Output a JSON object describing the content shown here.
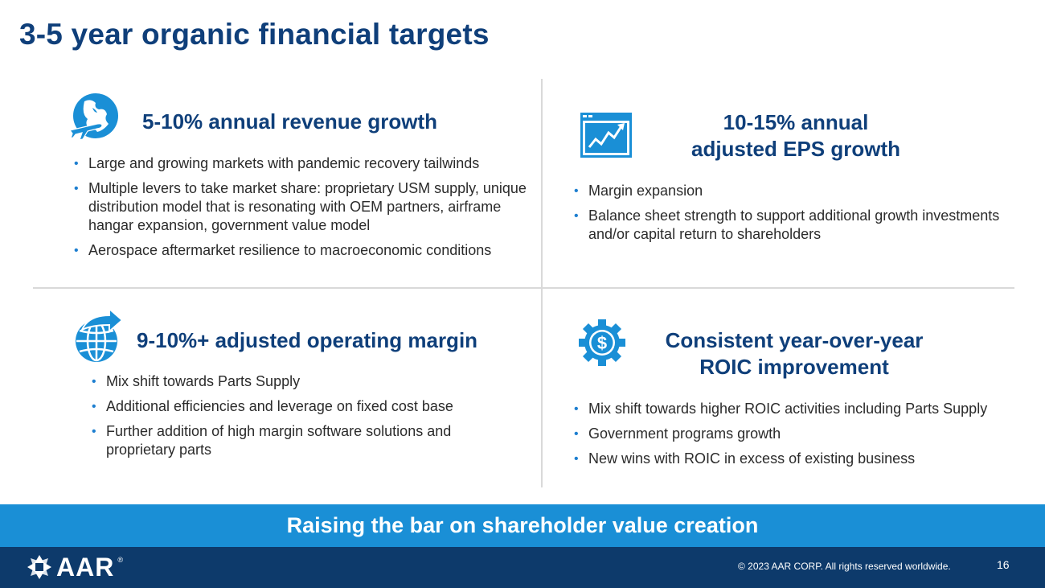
{
  "slide": {
    "title": "3-5 year organic financial targets",
    "colors": {
      "primary": "#0f3f7a",
      "accent": "#1a8fd6",
      "footer": "#0d3a6b"
    }
  },
  "quadrants": {
    "revenue": {
      "icon": "globe-airplane-icon",
      "heading": "5-10% annual revenue growth",
      "bullets": [
        "Large and growing markets with pandemic recovery tailwinds",
        "Multiple levers to take market share: proprietary USM supply, unique distribution model that is resonating with OEM partners, airframe hangar expansion, government value model",
        "Aerospace aftermarket resilience to macroeconomic conditions"
      ]
    },
    "eps": {
      "icon": "growth-chart-icon",
      "heading_line1": "10-15% annual",
      "heading_line2": "adjusted EPS growth",
      "bullets": [
        "Margin expansion",
        "Balance sheet strength to support additional growth investments and/or capital return to shareholders"
      ]
    },
    "margin": {
      "icon": "globe-arrow-icon",
      "heading": "9-10%+ adjusted operating margin",
      "bullets": [
        "Mix shift towards Parts Supply",
        "Additional efficiencies and leverage on fixed cost base",
        "Further addition of high margin software solutions and proprietary parts"
      ]
    },
    "roic": {
      "icon": "dollar-gear-icon",
      "heading_line1": "Consistent year-over-year",
      "heading_line2": "ROIC improvement",
      "bullets": [
        "Mix shift towards higher ROIC activities including Parts Supply",
        "Government programs growth",
        "New wins with ROIC in excess of existing business"
      ]
    }
  },
  "banner": {
    "text": "Raising the bar on shareholder value creation"
  },
  "footer": {
    "logo_text": "AAR",
    "logo_reg": "®",
    "copyright": "© 2023 AAR CORP. All rights reserved worldwide.",
    "page_number": "16"
  }
}
